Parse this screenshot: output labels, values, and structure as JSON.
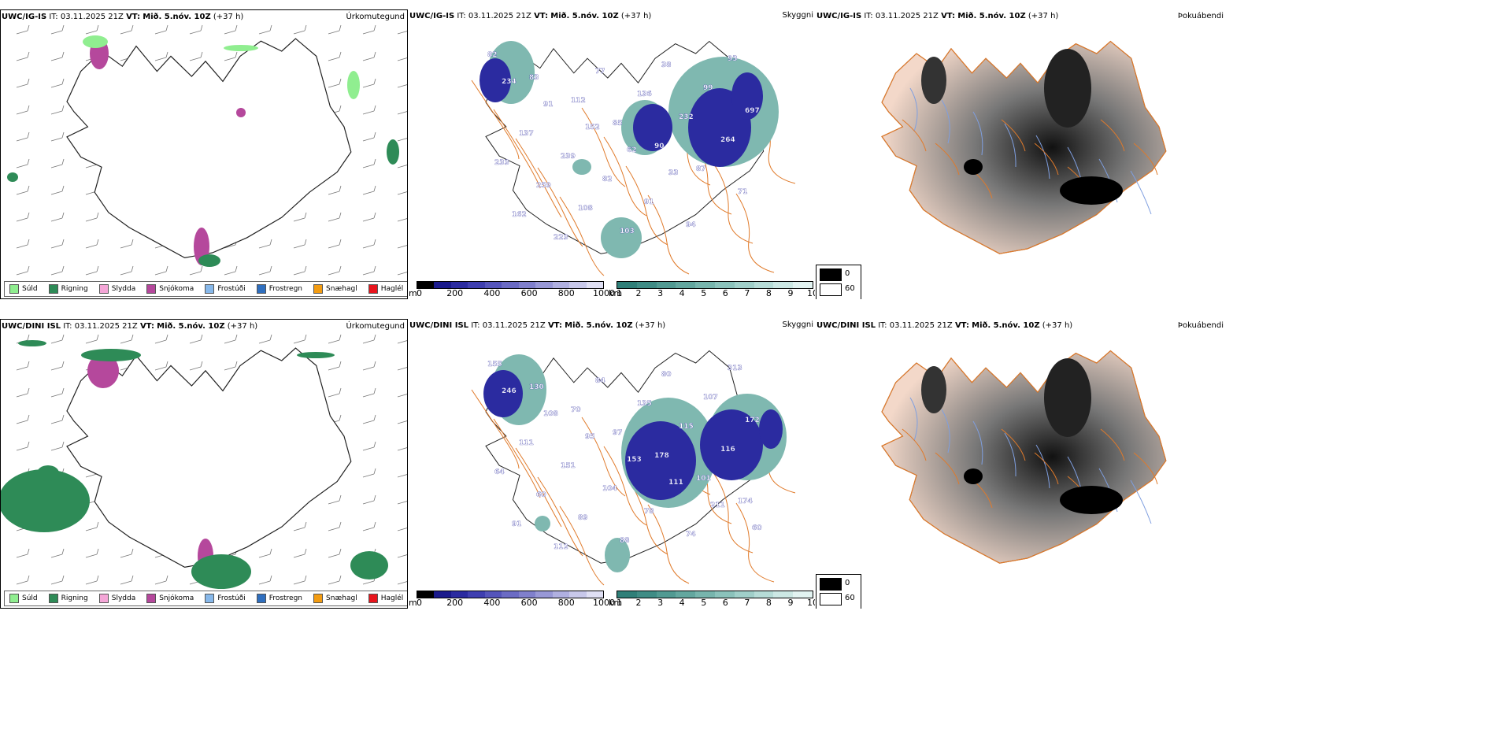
{
  "panels": {
    "ig_precip": {
      "model": "UWC/IG-IS",
      "it_label": "IT:",
      "it": "03.11.2025 21Z",
      "vt_label": "VT:",
      "vt": "Mið. 5.nóv. 10Z",
      "lead": "(+37 h)",
      "field": "Úrkomutegund"
    },
    "ig_cloud": {
      "model": "UWC/IG-IS",
      "it_label": "IT:",
      "it": "03.11.2025 21Z",
      "vt_label": "VT:",
      "vt": "Mið. 5.nóv. 10Z",
      "lead": "(+37 h)",
      "field": "Skyggni"
    },
    "ig_fog": {
      "model": "UWC/IG-IS",
      "it_label": "IT:",
      "it": "03.11.2025 21Z",
      "vt_label": "VT:",
      "vt": "Mið. 5.nóv. 10Z",
      "lead": "(+37 h)",
      "field": "Þokuábendi"
    },
    "dini_precip": {
      "model": "UWC/DINI ISL",
      "it_label": "IT:",
      "it": "03.11.2025 21Z",
      "vt_label": "VT:",
      "vt": "Mið. 5.nóv. 10Z",
      "lead": "(+37 h)",
      "field": "Úrkomutegund"
    },
    "dini_cloud": {
      "model": "UWC/DINI ISL",
      "it_label": "IT:",
      "it": "03.11.2025 21Z",
      "vt_label": "VT:",
      "vt": "Mið. 5.nóv. 10Z",
      "lead": "(+37 h)",
      "field": "Skyggni"
    },
    "dini_fog": {
      "model": "UWC/DINI ISL",
      "it_label": "IT:",
      "it": "03.11.2025 21Z",
      "vt_label": "VT:",
      "vt": "Mið. 5.nóv. 10Z",
      "lead": "(+37 h)",
      "field": "Þokuábendi"
    }
  },
  "precip_legend": [
    {
      "label": "Súld",
      "color": "#90ee90"
    },
    {
      "label": "Rigning",
      "color": "#2e8b57"
    },
    {
      "label": "Slydda",
      "color": "#f4a6d7"
    },
    {
      "label": "Snjókoma",
      "color": "#b5489c"
    },
    {
      "label": "Frostúði",
      "color": "#87b8ea"
    },
    {
      "label": "Frostregn",
      "color": "#2f6fbf"
    },
    {
      "label": "Snæhagl",
      "color": "#f39c12"
    },
    {
      "label": "Haglél",
      "color": "#e8141c"
    }
  ],
  "base_scale": {
    "unit": "m",
    "ticks": [
      "0",
      "200",
      "400",
      "600",
      "800",
      "1000"
    ],
    "colors": [
      "#000000",
      "#1a1a8c",
      "#2b2ba0",
      "#3f3fb0",
      "#5555bb",
      "#6b6bc4",
      "#8080cc",
      "#9898d6",
      "#b0b0e0",
      "#c8c8ea",
      "#e0e0f4"
    ]
  },
  "vis_scale": {
    "unit": "km",
    "ticks": [
      "1",
      "2",
      "3",
      "4",
      "5",
      "6",
      "7",
      "8",
      "9",
      "10"
    ],
    "colors": [
      "#2f7f78",
      "#3f8c85",
      "#519a92",
      "#63a79f",
      "#77b5ad",
      "#8bc2bb",
      "#a0cfc9",
      "#b6dcd7",
      "#cce8e4",
      "#e2f3f1"
    ]
  },
  "fog_legend": {
    "items": [
      {
        "value": "0",
        "color": "#000000"
      },
      {
        "value": "60",
        "color": "#ffffff"
      }
    ]
  },
  "cloud_labels": {
    "ig": [
      "82",
      "83",
      "112",
      "85",
      "90",
      "87",
      "71",
      "162",
      "223",
      "77",
      "136",
      "232",
      "264",
      "233",
      "259",
      "108",
      "103",
      "38",
      "99",
      "697",
      "137",
      "239",
      "82",
      "91",
      "94",
      "93",
      "234",
      "91",
      "152",
      "62",
      "33"
    ],
    "dini": [
      "155",
      "130",
      "70",
      "97",
      "178",
      "101",
      "174",
      "91",
      "112",
      "84",
      "135",
      "115",
      "116",
      "64",
      "60",
      "89",
      "88",
      "80",
      "107",
      "172",
      "111",
      "151",
      "104",
      "78",
      "74",
      "313",
      "246",
      "108",
      "95",
      "153",
      "111",
      "211",
      "60"
    ]
  },
  "colors": {
    "outline": "#222222",
    "roads": "#e07a2a",
    "rivers": "#7f9fe0",
    "terrain": "#f3d8c9"
  }
}
